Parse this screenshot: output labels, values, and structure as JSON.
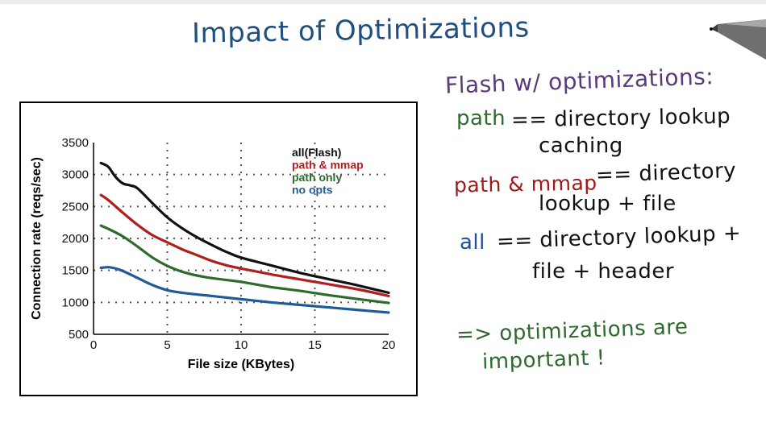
{
  "slide": {
    "title": "Impact of Optimizations"
  },
  "notes": {
    "heading": "Flash w/ optimizations:",
    "path_term": "path",
    "path_def": "== directory lookup",
    "path_def_cont": "caching",
    "mmap_term": "path & mmap",
    "mmap_def": "== directory",
    "mmap_def_cont": "lookup + file",
    "all_term": "all",
    "all_def": "== directory lookup +",
    "all_def_cont": "file + header",
    "conclusion": "=> optimizations are",
    "conclusion_cont": "important !"
  },
  "chart_data": {
    "type": "line",
    "xlabel": "File size (KBytes)",
    "ylabel": "Connection rate (reqs/sec)",
    "xlim": [
      0,
      20
    ],
    "ylim": [
      500,
      3500
    ],
    "xticks": [
      "0",
      "5",
      "10",
      "15",
      "20"
    ],
    "yticks": [
      "500",
      "1000",
      "1500",
      "2000",
      "2500",
      "3000",
      "3500"
    ],
    "grid": "dotted",
    "legend_position": "top-right",
    "series": [
      {
        "name": "all(Flash)",
        "color": "#111111",
        "x": [
          0.5,
          1,
          1.5,
          2,
          2.5,
          3,
          4,
          5,
          6,
          7,
          8,
          9,
          10,
          12,
          14,
          16,
          18,
          20
        ],
        "y": [
          3180,
          3120,
          2960,
          2860,
          2830,
          2780,
          2550,
          2330,
          2160,
          2020,
          1900,
          1790,
          1700,
          1580,
          1460,
          1360,
          1260,
          1150
        ]
      },
      {
        "name": "path & mmap",
        "color": "#b01e1e",
        "x": [
          0.5,
          1,
          2,
          3,
          4,
          5,
          6,
          7,
          8,
          9,
          10,
          12,
          14,
          16,
          18,
          20
        ],
        "y": [
          2680,
          2600,
          2400,
          2210,
          2050,
          1940,
          1830,
          1740,
          1650,
          1580,
          1530,
          1440,
          1360,
          1280,
          1200,
          1100
        ]
      },
      {
        "name": "path only",
        "color": "#2d6b2d",
        "x": [
          0.5,
          1,
          2,
          3,
          4,
          5,
          6,
          7,
          8,
          10,
          12,
          14,
          16,
          18,
          20
        ],
        "y": [
          2200,
          2150,
          2030,
          1870,
          1700,
          1570,
          1480,
          1420,
          1380,
          1320,
          1240,
          1180,
          1110,
          1050,
          990
        ]
      },
      {
        "name": "no opts",
        "color": "#1f5a9a",
        "x": [
          0.5,
          1,
          1.5,
          2,
          3,
          4,
          5,
          6,
          8,
          10,
          12,
          14,
          16,
          18,
          20
        ],
        "y": [
          1540,
          1550,
          1530,
          1490,
          1380,
          1270,
          1190,
          1150,
          1100,
          1050,
          1000,
          960,
          920,
          880,
          840
        ]
      }
    ]
  }
}
